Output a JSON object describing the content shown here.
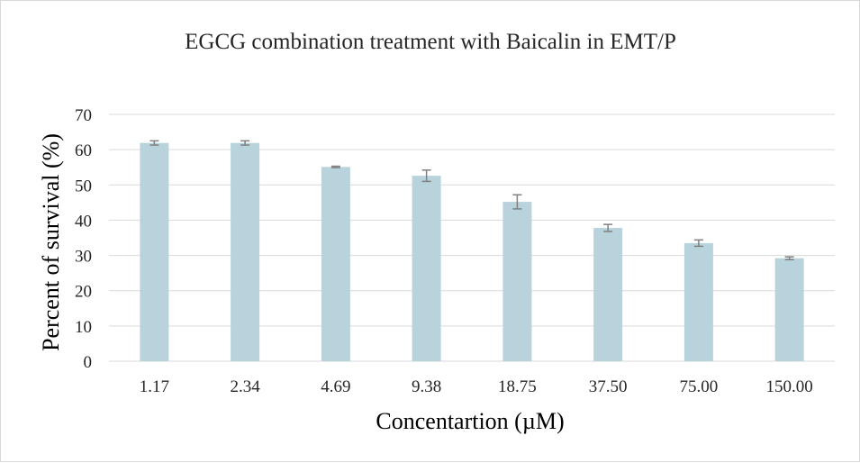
{
  "chart_data": {
    "type": "bar",
    "title": "EGCG combination treatment with Baicalin in EMT/P",
    "xlabel": "Concentartion (µM)",
    "ylabel": "Percent of survival (%)",
    "categories": [
      "1.17",
      "2.34",
      "4.69",
      "9.38",
      "18.75",
      "37.50",
      "75.00",
      "150.00"
    ],
    "values": [
      61.9,
      61.9,
      55.1,
      52.6,
      45.2,
      37.8,
      33.5,
      29.2
    ],
    "errors": [
      0.6,
      0.6,
      0.2,
      1.6,
      2.0,
      1.0,
      0.9,
      0.4
    ],
    "ylim": [
      0,
      70
    ],
    "yticks": [
      "0",
      "10",
      "20",
      "30",
      "40",
      "50",
      "60",
      "70"
    ],
    "grid": true,
    "legend": "none",
    "colors": {
      "bar": "#b8d3dc",
      "error_bar": "#808080",
      "grid": "#d9d9d9",
      "text": "#000000",
      "tick_text": "#262626"
    }
  }
}
